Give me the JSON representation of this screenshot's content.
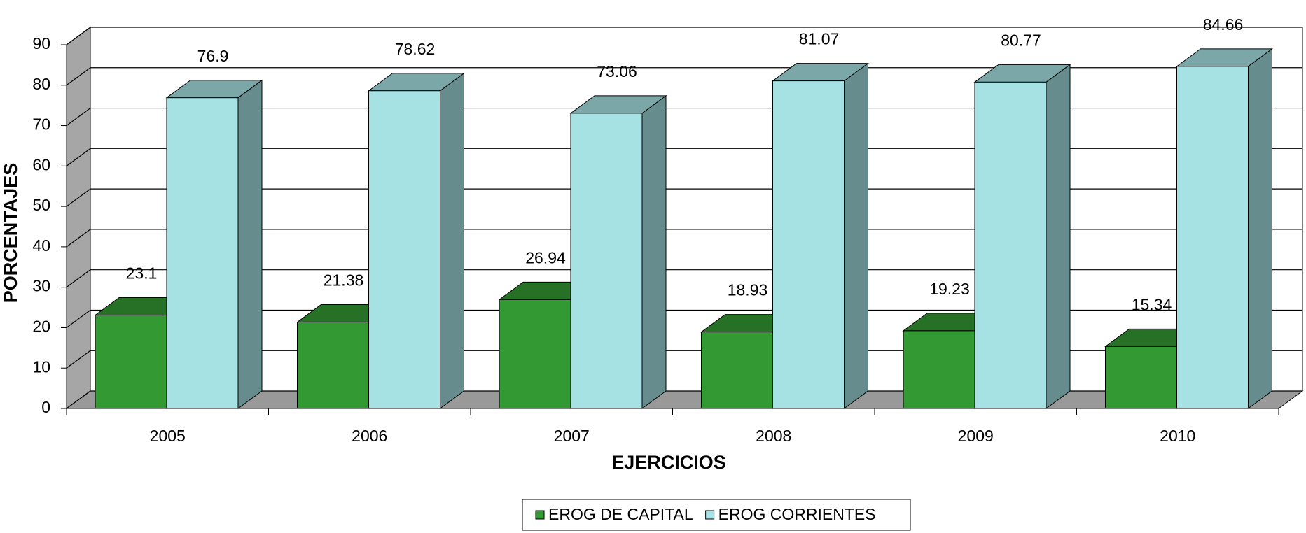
{
  "chart_data": {
    "type": "bar3d",
    "x_label": "EJERCICIOS",
    "y_label": "PORCENTAJES",
    "categories": [
      "2005",
      "2006",
      "2007",
      "2008",
      "2009",
      "2010"
    ],
    "series": [
      {
        "name": "EROG DE CAPITAL",
        "color": "#339933",
        "values": [
          23.1,
          21.38,
          26.94,
          18.93,
          19.23,
          15.34
        ]
      },
      {
        "name": "EROG CORRIENTES",
        "color": "#a6e1e3",
        "values": [
          76.9,
          78.62,
          73.06,
          81.07,
          80.77,
          84.66
        ]
      }
    ],
    "ylim": [
      0,
      90
    ],
    "yticks": [
      0,
      10,
      20,
      30,
      40,
      50,
      60,
      70,
      80,
      90
    ],
    "grid": true,
    "legend": "bottom"
  }
}
